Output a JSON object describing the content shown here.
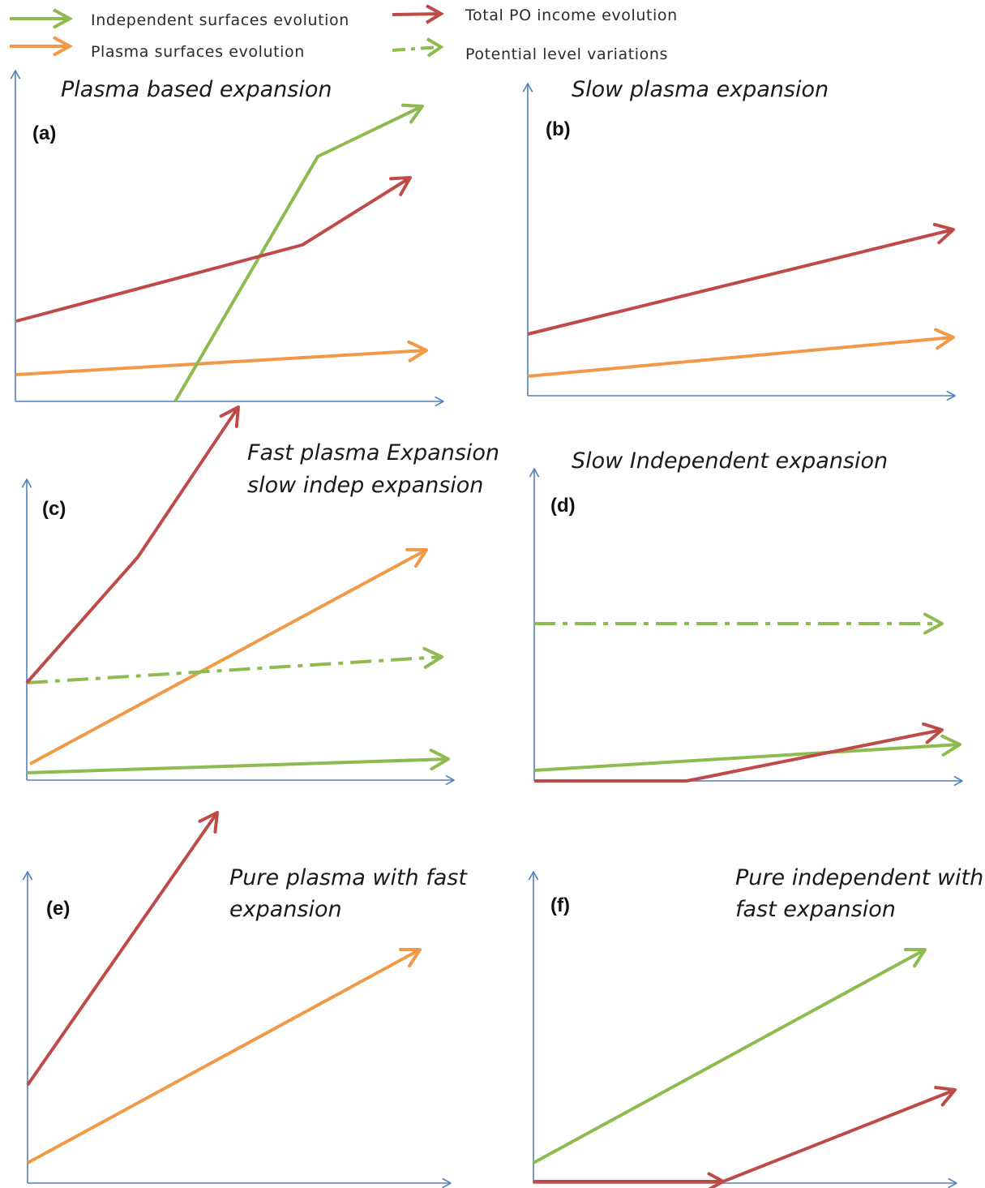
{
  "colors": {
    "independent": "#8DBB4F",
    "plasma": "#F09A48",
    "total": "#BE4B48",
    "potential": "#8DBB4F",
    "axis": "#4F81BD"
  },
  "legend": {
    "independent": "Independent surfaces evolution",
    "plasma": "Plasma surfaces evolution",
    "total": "Total PO income evolution",
    "potential": "Potential level variations"
  },
  "panels": [
    {
      "id": "a",
      "label": "(a)",
      "title": [
        "Plasma based expansion"
      ]
    },
    {
      "id": "b",
      "label": "(b)",
      "title": [
        "Slow plasma expansion"
      ]
    },
    {
      "id": "c",
      "label": "(c)",
      "title": [
        "Fast plasma Expansion",
        "slow indep expansion"
      ]
    },
    {
      "id": "d",
      "label": "(d)",
      "title": [
        "Slow Independent expansion"
      ]
    },
    {
      "id": "e",
      "label": "(e)",
      "title": [
        "Pure plasma with fast",
        "expansion"
      ]
    },
    {
      "id": "f",
      "label": "(f)",
      "title": [
        "Pure independent with",
        "fast expansion"
      ]
    }
  ]
}
